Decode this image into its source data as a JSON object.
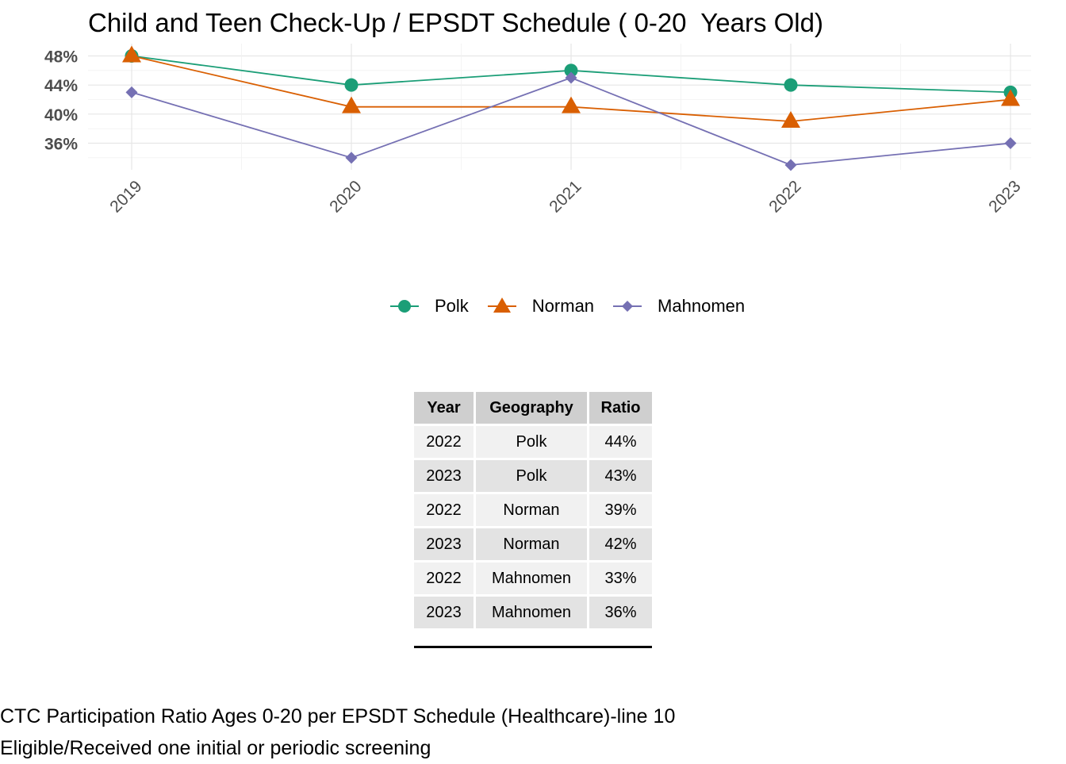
{
  "chart_data": {
    "type": "line",
    "title": "Child and Teen Check-Up / EPSDT Schedule ( 0-20  Years Old)",
    "xlabel": "",
    "ylabel": "",
    "x": [
      "2019",
      "2020",
      "2021",
      "2022",
      "2023"
    ],
    "ylim": [
      32,
      48.5
    ],
    "yticks": [
      36,
      40,
      44,
      48
    ],
    "ytick_labels": [
      "36%",
      "40%",
      "44%",
      "48%"
    ],
    "grid": true,
    "legend_position": "bottom",
    "series": [
      {
        "name": "Polk",
        "values": [
          48,
          44,
          46,
          44,
          43
        ],
        "color": "#1b9e77",
        "marker": "circle"
      },
      {
        "name": "Norman",
        "values": [
          48,
          41,
          41,
          39,
          42
        ],
        "color": "#d95f02",
        "marker": "triangle"
      },
      {
        "name": "Mahnomen",
        "values": [
          43,
          34,
          45,
          33,
          36
        ],
        "color": "#7570b3",
        "marker": "diamond"
      }
    ]
  },
  "table": {
    "headers": [
      "Year",
      "Geography",
      "Ratio"
    ],
    "rows": [
      [
        "2022",
        "Polk",
        "44%"
      ],
      [
        "2023",
        "Polk",
        "43%"
      ],
      [
        "2022",
        "Norman",
        "39%"
      ],
      [
        "2023",
        "Norman",
        "42%"
      ],
      [
        "2022",
        "Mahnomen",
        "33%"
      ],
      [
        "2023",
        "Mahnomen",
        "36%"
      ]
    ]
  },
  "caption": {
    "line1": "CTC Participation Ratio Ages 0-20 per EPSDT Schedule (Healthcare)-line 10",
    "line2": "Eligible/Received one initial or periodic screening"
  }
}
